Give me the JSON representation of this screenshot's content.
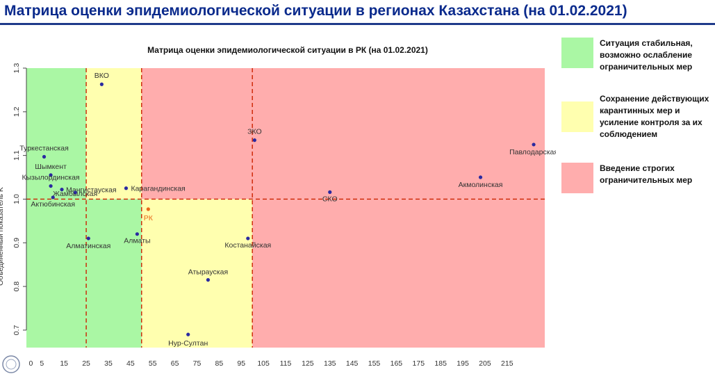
{
  "header": {
    "title": "Матрица оценки эпидемиологической ситуации в регионах Казахстана (на 01.02.2021)"
  },
  "chart_data": {
    "type": "scatter",
    "title": "Матрица оценки эпидемиологической ситуации в РК (на 01.02.2021)",
    "xlabel": "",
    "ylabel": "Объединенный показатель K",
    "xlim": [
      -2,
      232
    ],
    "ylim": [
      0.66,
      1.3
    ],
    "x_ticks": [
      0,
      5,
      15,
      25,
      35,
      45,
      55,
      65,
      75,
      85,
      95,
      105,
      115,
      125,
      135,
      145,
      155,
      165,
      175,
      185,
      195,
      205,
      215
    ],
    "y_ticks": [
      0.7,
      0.8,
      0.9,
      1.0,
      1.1,
      1.2,
      1.3
    ],
    "y_tick_labels": [
      "0.7",
      "0.8",
      "0.9",
      "1.0",
      "1.1",
      "1.2",
      "1.3"
    ],
    "zones": [
      {
        "x0": -2,
        "x1": 25,
        "y0": 0.66,
        "y1": 1.3,
        "color": "#aaf7a4"
      },
      {
        "x0": 25,
        "x1": 50,
        "y0": 1.0,
        "y1": 1.3,
        "color": "#ffffaf"
      },
      {
        "x0": 50,
        "x1": 100,
        "y0": 0.66,
        "y1": 1.0,
        "color": "#ffffaf"
      },
      {
        "x0": 25,
        "x1": 50,
        "y0": 0.66,
        "y1": 1.0,
        "color": "#aaf7a4"
      },
      {
        "x0": 50,
        "x1": 232,
        "y0": 1.0,
        "y1": 1.3,
        "color": "#ffadad"
      },
      {
        "x0": 100,
        "x1": 232,
        "y0": 0.66,
        "y1": 1.0,
        "color": "#ffadad"
      }
    ],
    "threshold_lines": {
      "x": [
        25,
        50,
        100
      ],
      "y": 1.0,
      "color": "#cc2200"
    },
    "points": [
      {
        "name": "ВКО",
        "x": 32,
        "y": 1.263,
        "color": "#2a2aa0"
      },
      {
        "name": "ЗКО",
        "x": 101,
        "y": 1.135,
        "color": "#2a2aa0"
      },
      {
        "name": "Павлодарская",
        "x": 227,
        "y": 1.125,
        "color": "#2a2aa0"
      },
      {
        "name": "Туркестанская",
        "x": 6,
        "y": 1.097,
        "color": "#2a2aa0"
      },
      {
        "name": "Шымкент",
        "x": 9,
        "y": 1.055,
        "color": "#2a2aa0"
      },
      {
        "name": "Акмолинская",
        "x": 203,
        "y": 1.05,
        "color": "#2a2aa0"
      },
      {
        "name": "Кызылординская",
        "x": 9,
        "y": 1.03,
        "color": "#2a2aa0"
      },
      {
        "name": "Мангистауская",
        "x": 14,
        "y": 1.022,
        "color": "#2a2aa0"
      },
      {
        "name": "Карагандинская",
        "x": 43,
        "y": 1.025,
        "color": "#2a2aa0"
      },
      {
        "name": "СКО",
        "x": 135,
        "y": 1.016,
        "color": "#2a2aa0"
      },
      {
        "name": "Жамбылская",
        "x": 20,
        "y": 1.015,
        "color": "#2a2aa0"
      },
      {
        "name": "Актюбинская",
        "x": 10,
        "y": 1.004,
        "color": "#2a2aa0"
      },
      {
        "name": "РК",
        "x": 53,
        "y": 0.977,
        "color": "#e86a1a"
      },
      {
        "name": "Алматы",
        "x": 48,
        "y": 0.92,
        "color": "#2a2aa0"
      },
      {
        "name": "Алматинская",
        "x": 26,
        "y": 0.91,
        "color": "#2a2aa0"
      },
      {
        "name": "Костанайская",
        "x": 98,
        "y": 0.91,
        "color": "#2a2aa0"
      },
      {
        "name": "Атырауская",
        "x": 80,
        "y": 0.815,
        "color": "#2a2aa0"
      },
      {
        "name": "Нур-Султан",
        "x": 71,
        "y": 0.69,
        "color": "#2a2aa0"
      }
    ]
  },
  "legend": {
    "items": [
      {
        "text": "Ситуация стабильная, возможно ослабление ограничительных мер",
        "color": "#aaf7a4"
      },
      {
        "text": "Сохранение действующих карантинных мер и усиление контроля за их соблюдением",
        "color": "#ffffaf"
      },
      {
        "text": "Введение строгих ограничительных мер",
        "color": "#ffadad"
      }
    ]
  }
}
